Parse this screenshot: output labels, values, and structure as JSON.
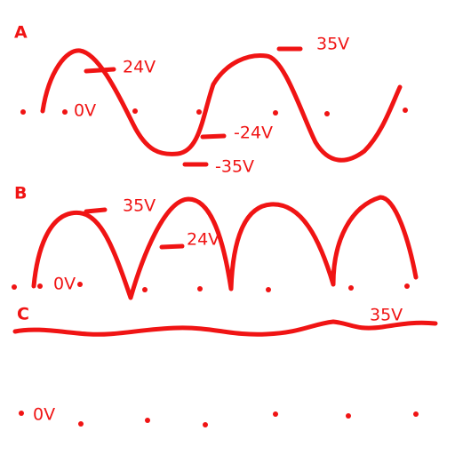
{
  "panels": [
    {
      "label": "A",
      "annotations": [
        "24V",
        "35V",
        "0V",
        "-24V",
        "-35V"
      ]
    },
    {
      "label": "B",
      "annotations": [
        "35V",
        "24V",
        "0V"
      ]
    },
    {
      "label": "C",
      "annotations": [
        "35V",
        "0V"
      ]
    }
  ]
}
